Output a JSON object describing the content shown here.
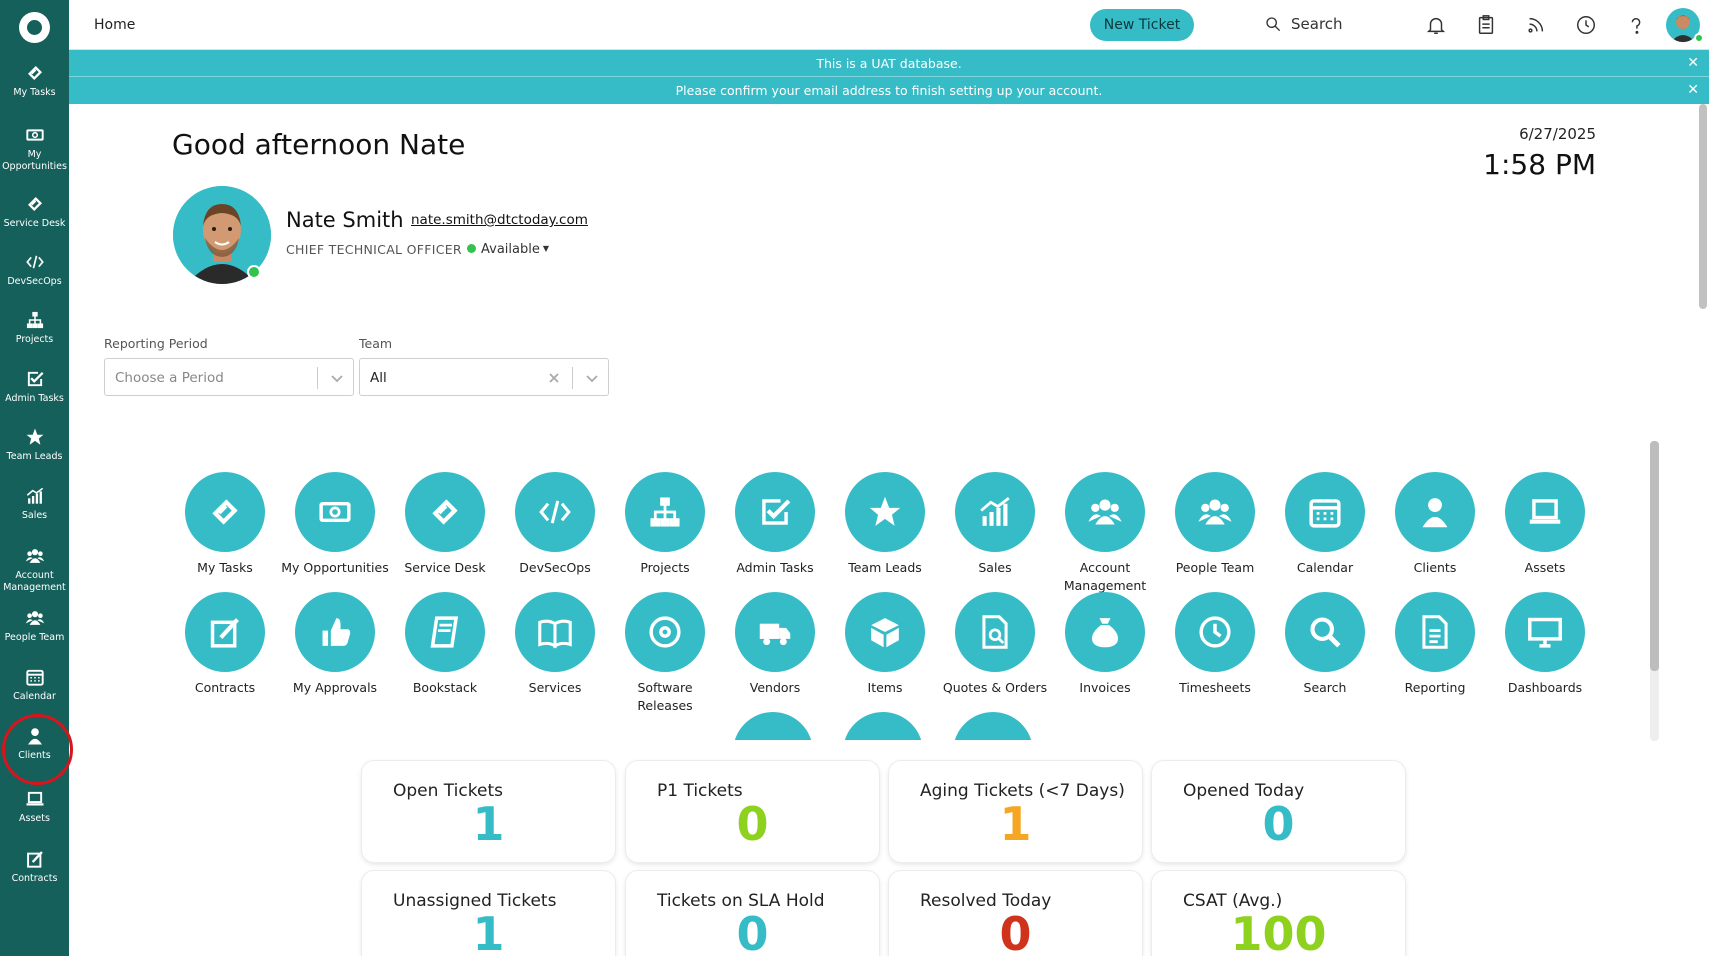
{
  "sidebar": {
    "items": [
      {
        "label": "My Tasks",
        "icon": "ticket-icon"
      },
      {
        "label": "My Opportunities",
        "icon": "money-icon"
      },
      {
        "label": "Service Desk",
        "icon": "ticket-icon"
      },
      {
        "label": "DevSecOps",
        "icon": "code-icon"
      },
      {
        "label": "Projects",
        "icon": "sitemap-icon"
      },
      {
        "label": "Admin Tasks",
        "icon": "check-square-icon"
      },
      {
        "label": "Team Leads",
        "icon": "star-icon"
      },
      {
        "label": "Sales",
        "icon": "chart-icon"
      },
      {
        "label": "Account Management",
        "icon": "users-icon"
      },
      {
        "label": "People Team",
        "icon": "users-icon"
      },
      {
        "label": "Calendar",
        "icon": "calendar-icon"
      },
      {
        "label": "Clients",
        "icon": "user-icon"
      },
      {
        "label": "Assets",
        "icon": "laptop-icon"
      },
      {
        "label": "Contracts",
        "icon": "edit-icon"
      }
    ]
  },
  "topbar": {
    "breadcrumb": "Home",
    "new_ticket_label": "New Ticket",
    "search_label": "Search"
  },
  "banners": {
    "uat": "This is a UAT database.",
    "confirm": "Please confirm your email address to finish setting up your account."
  },
  "header": {
    "greeting": "Good afternoon Nate",
    "date": "6/27/2025",
    "time": "1:58 PM"
  },
  "user": {
    "name": "Nate Smith",
    "email": "nate.smith@dtctoday.com",
    "title": "CHIEF TECHNICAL OFFICER",
    "status": "Available"
  },
  "filters": {
    "period_label": "Reporting Period",
    "period_placeholder": "Choose a Period",
    "team_label": "Team",
    "team_value": "All"
  },
  "apps": [
    {
      "label": "My Tasks",
      "icon": "ticket-icon"
    },
    {
      "label": "My Opportunities",
      "icon": "money-icon"
    },
    {
      "label": "Service Desk",
      "icon": "ticket-icon"
    },
    {
      "label": "DevSecOps",
      "icon": "code-icon"
    },
    {
      "label": "Projects",
      "icon": "sitemap-icon"
    },
    {
      "label": "Admin Tasks",
      "icon": "check-square-icon"
    },
    {
      "label": "Team Leads",
      "icon": "star-icon"
    },
    {
      "label": "Sales",
      "icon": "chart-icon"
    },
    {
      "label": "Account Management",
      "icon": "users-icon"
    },
    {
      "label": "People Team",
      "icon": "users-icon"
    },
    {
      "label": "Calendar",
      "icon": "calendar-icon"
    },
    {
      "label": "Clients",
      "icon": "user-icon"
    },
    {
      "label": "Assets",
      "icon": "laptop-icon"
    },
    {
      "label": "Contracts",
      "icon": "edit-icon"
    },
    {
      "label": "My Approvals",
      "icon": "thumbs-up-icon"
    },
    {
      "label": "Bookstack",
      "icon": "book-icon"
    },
    {
      "label": "Services",
      "icon": "open-book-icon"
    },
    {
      "label": "Software Releases",
      "icon": "disc-icon"
    },
    {
      "label": "Vendors",
      "icon": "truck-icon"
    },
    {
      "label": "Items",
      "icon": "box-icon"
    },
    {
      "label": "Quotes & Orders",
      "icon": "file-search-icon"
    },
    {
      "label": "Invoices",
      "icon": "money-bag-icon"
    },
    {
      "label": "Timesheets",
      "icon": "clock-icon"
    },
    {
      "label": "Search",
      "icon": "search-icon"
    },
    {
      "label": "Reporting",
      "icon": "file-text-icon"
    },
    {
      "label": "Dashboards",
      "icon": "monitor-icon"
    }
  ],
  "metrics": [
    {
      "title": "Open Tickets",
      "value": "1",
      "color": "#36bcc7"
    },
    {
      "title": "P1 Tickets",
      "value": "0",
      "color": "#8fd11f"
    },
    {
      "title": "Aging Tickets (<7 Days)",
      "value": "1",
      "color": "#f5a623"
    },
    {
      "title": "Opened Today",
      "value": "0",
      "color": "#36bcc7"
    },
    {
      "title": "Unassigned Tickets",
      "value": "1",
      "color": "#36bcc7"
    },
    {
      "title": "Tickets on SLA Hold",
      "value": "0",
      "color": "#36bcc7"
    },
    {
      "title": "Resolved Today",
      "value": "0",
      "color": "#d0331b"
    },
    {
      "title": "CSAT (Avg.)",
      "value": "100",
      "color": "#8fd11f"
    }
  ],
  "colors": {
    "sidebar": "#16605b",
    "accent": "#36bcc7",
    "available": "#32c24d"
  }
}
